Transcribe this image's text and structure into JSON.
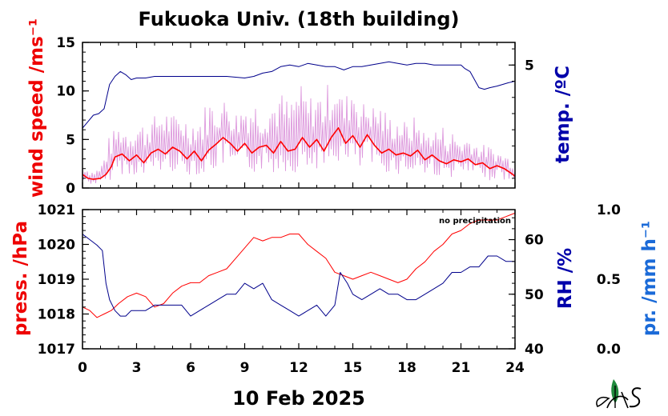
{
  "title": "Fukuoka Univ. (18th building)",
  "date_label": "10 Feb 2025",
  "note": "no precipitation",
  "chart_data": [
    {
      "type": "line",
      "panel": "top",
      "xlim": [
        0,
        24
      ],
      "x_ticks": [
        "0",
        "3",
        "6",
        "9",
        "12",
        "15",
        "18",
        "21",
        "24"
      ],
      "left_axis": {
        "label": "wind speed /ms⁻¹",
        "ylim": [
          0,
          15
        ],
        "ticks": [
          "0",
          "5",
          "10",
          "15"
        ]
      },
      "right_axis": {
        "label": "temp. /ºC",
        "ylim": [
          -2.6,
          6.4
        ],
        "ticks": [
          "5"
        ]
      },
      "series": [
        {
          "axis": "right",
          "color": "#00008b",
          "x": [
            0,
            0.3,
            0.6,
            0.9,
            1.2,
            1.5,
            1.8,
            2.1,
            2.4,
            2.7,
            3.0,
            3.5,
            4,
            5,
            6,
            7,
            8,
            9,
            9.5,
            10,
            10.5,
            11,
            11.5,
            12,
            12.5,
            13,
            13.5,
            14,
            14.5,
            15,
            15.5,
            16,
            16.5,
            17,
            17.5,
            18,
            18.5,
            19,
            19.5,
            20,
            20.5,
            21,
            21.2,
            21.5,
            21.8,
            22,
            22.3,
            22.6,
            23,
            23.3,
            23.6,
            24
          ],
          "values": [
            1.1,
            1.5,
            1.9,
            2.0,
            2.3,
            3.8,
            4.3,
            4.6,
            4.4,
            4.1,
            4.2,
            4.2,
            4.3,
            4.3,
            4.3,
            4.3,
            4.3,
            4.2,
            4.3,
            4.5,
            4.6,
            4.9,
            5.0,
            4.9,
            5.1,
            5.0,
            4.9,
            4.9,
            4.7,
            4.9,
            4.9,
            5.0,
            5.1,
            5.2,
            5.1,
            5.0,
            5.1,
            5.1,
            5.0,
            5.0,
            5.0,
            5.0,
            4.8,
            4.6,
            4.0,
            3.6,
            3.5,
            3.6,
            3.7,
            3.8,
            3.9,
            4.0
          ]
        },
        {
          "axis": "left",
          "name": "",
          "color": "#dd99dd",
          "x": [
            0,
            0.5,
            1,
            1.5,
            2,
            2.5,
            3,
            3.5,
            4,
            4.5,
            5,
            5.5,
            6,
            6.5,
            7,
            7.5,
            8,
            8.5,
            9,
            9.5,
            10,
            10.5,
            11,
            11.5,
            12,
            12.5,
            13,
            13.5,
            14,
            14.5,
            15,
            15.5,
            16,
            16.5,
            17,
            17.5,
            18,
            18.5,
            19,
            19.5,
            20,
            20.5,
            21,
            21.5,
            22,
            22.5,
            23,
            23.5,
            24
          ],
          "values": [
            2.5,
            1.8,
            2.2,
            5.5,
            6.5,
            6.2,
            6.8,
            7.0,
            7.5,
            8.5,
            7.5,
            8.0,
            7.0,
            7.5,
            9.5,
            8.5,
            9.5,
            8.0,
            9.0,
            9.5,
            8.0,
            9.5,
            10.0,
            9.0,
            11.0,
            9.5,
            10.0,
            10.5,
            12.0,
            9.0,
            11.5,
            9.0,
            8.5,
            9.0,
            7.5,
            7.5,
            6.8,
            7.5,
            5.8,
            6.2,
            6.5,
            6.0,
            5.0,
            5.5,
            4.5,
            4.5,
            3.8,
            3.5,
            2.8
          ]
        },
        {
          "axis": "left",
          "color": "#ff0000",
          "x": [
            0,
            0.3,
            0.6,
            1.0,
            1.3,
            1.6,
            1.8,
            2.2,
            2.6,
            3.0,
            3.4,
            3.8,
            4.2,
            4.6,
            5.0,
            5.4,
            5.8,
            6.2,
            6.6,
            7.0,
            7.4,
            7.8,
            8.2,
            8.6,
            9.0,
            9.4,
            9.8,
            10.2,
            10.6,
            11.0,
            11.4,
            11.8,
            12.2,
            12.6,
            13.0,
            13.4,
            13.8,
            14.2,
            14.6,
            15.0,
            15.4,
            15.8,
            16.2,
            16.6,
            17.0,
            17.4,
            17.8,
            18.2,
            18.6,
            19.0,
            19.4,
            19.8,
            20.2,
            20.6,
            21.0,
            21.4,
            21.8,
            22.2,
            22.6,
            23.0,
            23.4,
            23.8,
            24
          ],
          "values": [
            1.4,
            1.0,
            0.9,
            1.0,
            1.4,
            2.2,
            3.2,
            3.5,
            2.8,
            3.4,
            2.6,
            3.6,
            4.0,
            3.5,
            4.2,
            3.8,
            3.0,
            3.8,
            2.8,
            3.9,
            4.5,
            5.2,
            4.6,
            3.8,
            4.6,
            3.6,
            4.2,
            4.4,
            3.6,
            4.8,
            3.8,
            4.0,
            5.2,
            4.2,
            5.0,
            3.8,
            5.2,
            6.2,
            4.6,
            5.4,
            4.2,
            5.5,
            4.4,
            3.6,
            4.0,
            3.4,
            3.6,
            3.3,
            3.9,
            2.9,
            3.4,
            2.8,
            2.5,
            2.9,
            2.7,
            3.0,
            2.4,
            2.6,
            2.0,
            2.3,
            2.0,
            1.5,
            1.2
          ]
        }
      ]
    },
    {
      "type": "line",
      "panel": "bottom",
      "xlim": [
        0,
        24
      ],
      "x_ticks": [
        "0",
        "3",
        "6",
        "9",
        "12",
        "15",
        "18",
        "21",
        "24"
      ],
      "left_axis": {
        "label": "press. /hPa",
        "ylim": [
          1017,
          1021
        ],
        "ticks": [
          "1017",
          "1018",
          "1019",
          "1020",
          "1021"
        ]
      },
      "right_axis": {
        "label": "RH /%",
        "ylim": [
          40,
          65.5
        ],
        "ticks": [
          "40",
          "50",
          "60"
        ]
      },
      "far_right_axis": {
        "label": "pr. /mm h⁻¹",
        "ylim": [
          0,
          1
        ],
        "ticks": [
          "0.0",
          "0.5",
          "1.0"
        ]
      },
      "series": [
        {
          "axis": "left",
          "color": "#ff0000",
          "x": [
            0,
            0.4,
            0.8,
            1.2,
            1.6,
            2.0,
            2.5,
            3.0,
            3.5,
            4.0,
            4.5,
            5.0,
            5.5,
            6.0,
            6.5,
            7.0,
            7.5,
            8.0,
            8.5,
            9.0,
            9.5,
            10.0,
            10.5,
            11.0,
            11.5,
            12.0,
            12.5,
            13.0,
            13.5,
            14.0,
            14.5,
            15.0,
            15.5,
            16.0,
            16.5,
            17.0,
            17.5,
            18.0,
            18.5,
            19.0,
            19.5,
            20.0,
            20.5,
            21.0,
            21.5,
            22.0,
            22.5,
            23.0,
            23.5,
            24.0
          ],
          "values": [
            1018.2,
            1018.1,
            1017.9,
            1018.0,
            1018.1,
            1018.3,
            1018.5,
            1018.6,
            1018.5,
            1018.2,
            1018.3,
            1018.6,
            1018.8,
            1018.9,
            1018.9,
            1019.1,
            1019.2,
            1019.3,
            1019.6,
            1019.9,
            1020.2,
            1020.1,
            1020.2,
            1020.2,
            1020.3,
            1020.3,
            1020.0,
            1019.8,
            1019.6,
            1019.2,
            1019.1,
            1019.0,
            1019.1,
            1019.2,
            1019.1,
            1019.0,
            1018.9,
            1019.0,
            1019.3,
            1019.5,
            1019.8,
            1020.0,
            1020.3,
            1020.4,
            1020.6,
            1020.7,
            1020.7,
            1020.7,
            1020.8,
            1020.9
          ]
        },
        {
          "axis": "right",
          "color": "#00008b",
          "x": [
            0,
            0.4,
            0.8,
            1.1,
            1.3,
            1.5,
            1.8,
            2.1,
            2.4,
            2.7,
            3.0,
            3.5,
            4.0,
            4.5,
            5.0,
            5.5,
            6.0,
            6.5,
            7.0,
            7.5,
            8.0,
            8.5,
            9.0,
            9.5,
            10.0,
            10.5,
            11.0,
            11.5,
            12.0,
            12.5,
            13.0,
            13.5,
            14.0,
            14.3,
            14.7,
            15.0,
            15.5,
            16.0,
            16.5,
            17.0,
            17.5,
            18.0,
            18.5,
            19.0,
            19.5,
            20.0,
            20.5,
            21.0,
            21.5,
            22.0,
            22.5,
            23.0,
            23.5,
            24.0
          ],
          "values": [
            61,
            60,
            59,
            58,
            52,
            49,
            47,
            46,
            46,
            47,
            47,
            47,
            48,
            48,
            48,
            48,
            46,
            47,
            48,
            49,
            50,
            50,
            52,
            51,
            52,
            49,
            48,
            47,
            46,
            47,
            48,
            46,
            48,
            54,
            52,
            50,
            49,
            50,
            51,
            50,
            50,
            49,
            49,
            50,
            51,
            52,
            54,
            54,
            55,
            55,
            57,
            57,
            56,
            56
          ]
        }
      ]
    }
  ]
}
